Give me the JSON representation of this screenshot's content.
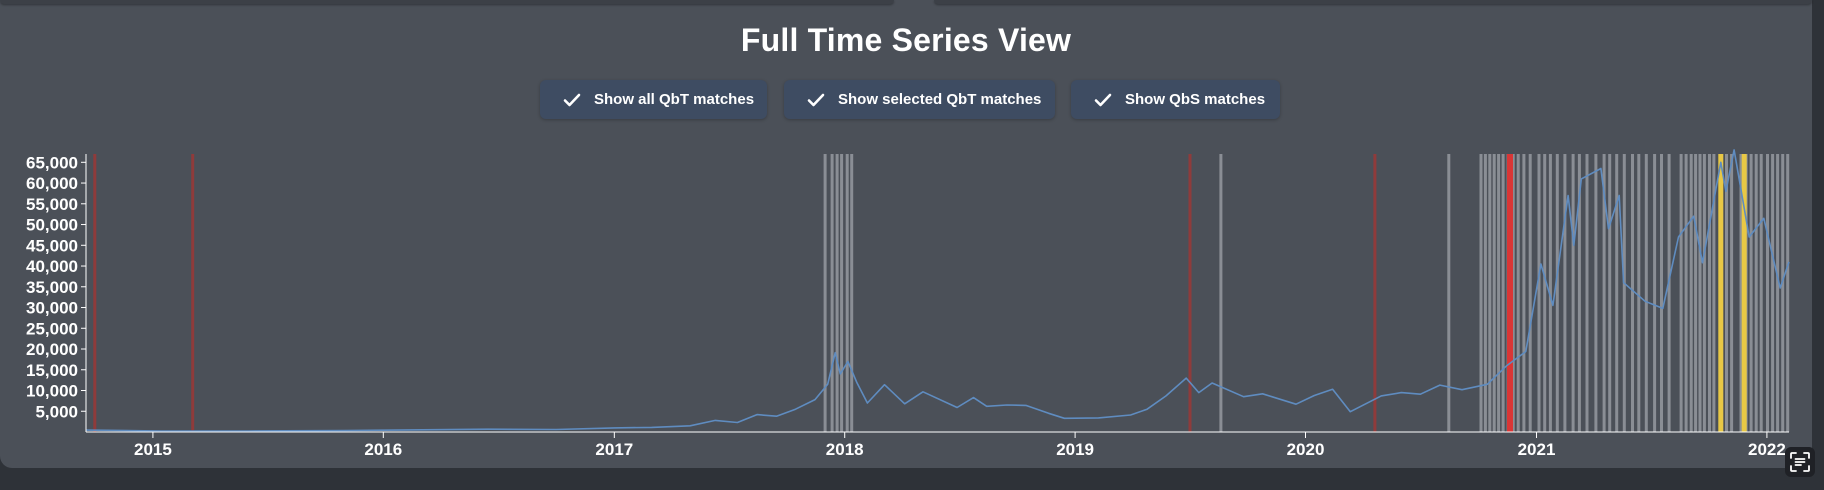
{
  "page": {
    "title": "Full Time Series View",
    "toggles": [
      {
        "label": "Show all QbT matches",
        "checked": true
      },
      {
        "label": "Show selected QbT matches",
        "checked": true
      },
      {
        "label": "Show QbS matches",
        "checked": true
      }
    ]
  },
  "colors": {
    "panel": "#4b5058",
    "line": "#5f8cc0",
    "qbt_match": "#8a8e95",
    "qbs_match": "#8f3b3b",
    "selected_red": "#d93636",
    "selected_yellow": "#e8c845"
  },
  "chart_data": {
    "type": "line",
    "title": "",
    "xlabel": "",
    "ylabel": "",
    "x_ticks": [
      "2015",
      "2016",
      "2017",
      "2018",
      "2019",
      "2020",
      "2021",
      "2022"
    ],
    "y_ticks": [
      5000,
      10000,
      15000,
      20000,
      25000,
      30000,
      35000,
      40000,
      45000,
      50000,
      55000,
      60000,
      65000
    ],
    "y_tick_labels": [
      "5,000",
      "10,000",
      "15,000",
      "20,000",
      "25,000",
      "30,000",
      "35,000",
      "40,000",
      "45,000",
      "50,000",
      "55,000",
      "60,000",
      "65,000"
    ],
    "xlim": [
      "2014-09-17",
      "2022-02-05"
    ],
    "ylim": [
      0,
      67000
    ],
    "grid": false,
    "series": [
      {
        "points": [
          [
            "2014-09-17",
            460
          ],
          [
            "2015-01-15",
            250
          ],
          [
            "2015-06-01",
            240
          ],
          [
            "2015-11-01",
            330
          ],
          [
            "2016-01-01",
            430
          ],
          [
            "2016-06-15",
            680
          ],
          [
            "2016-10-01",
            610
          ],
          [
            "2017-01-01",
            990
          ],
          [
            "2017-03-01",
            1100
          ],
          [
            "2017-05-01",
            1500
          ],
          [
            "2017-06-10",
            2800
          ],
          [
            "2017-07-15",
            2300
          ],
          [
            "2017-08-15",
            4200
          ],
          [
            "2017-09-15",
            3800
          ],
          [
            "2017-10-15",
            5500
          ],
          [
            "2017-11-15",
            7800
          ],
          [
            "2017-12-05",
            11500
          ],
          [
            "2017-12-17",
            19100
          ],
          [
            "2017-12-25",
            14000
          ],
          [
            "2018-01-06",
            17000
          ],
          [
            "2018-01-20",
            12000
          ],
          [
            "2018-02-06",
            7000
          ],
          [
            "2018-03-05",
            11400
          ],
          [
            "2018-04-06",
            6800
          ],
          [
            "2018-05-05",
            9700
          ],
          [
            "2018-06-28",
            5900
          ],
          [
            "2018-07-24",
            8300
          ],
          [
            "2018-08-14",
            6200
          ],
          [
            "2018-09-15",
            6500
          ],
          [
            "2018-10-15",
            6400
          ],
          [
            "2018-11-20",
            4500
          ],
          [
            "2018-12-15",
            3300
          ],
          [
            "2019-02-07",
            3400
          ],
          [
            "2019-03-30",
            4100
          ],
          [
            "2019-04-25",
            5500
          ],
          [
            "2019-05-25",
            8700
          ],
          [
            "2019-06-26",
            13000
          ],
          [
            "2019-07-16",
            9500
          ],
          [
            "2019-08-06",
            11800
          ],
          [
            "2019-09-25",
            8500
          ],
          [
            "2019-10-25",
            9200
          ],
          [
            "2019-12-17",
            6700
          ],
          [
            "2020-01-15",
            8800
          ],
          [
            "2020-02-13",
            10300
          ],
          [
            "2020-03-12",
            4900
          ],
          [
            "2020-04-30",
            8700
          ],
          [
            "2020-06-01",
            9500
          ],
          [
            "2020-07-01",
            9100
          ],
          [
            "2020-08-01",
            11300
          ],
          [
            "2020-09-05",
            10200
          ],
          [
            "2020-10-15",
            11500
          ],
          [
            "2020-11-15",
            16000
          ],
          [
            "2020-12-15",
            19400
          ],
          [
            "2021-01-08",
            40500
          ],
          [
            "2021-01-27",
            30500
          ],
          [
            "2021-02-20",
            57000
          ],
          [
            "2021-03-01",
            45000
          ],
          [
            "2021-03-13",
            61000
          ],
          [
            "2021-04-13",
            63500
          ],
          [
            "2021-04-25",
            49000
          ],
          [
            "2021-05-12",
            57000
          ],
          [
            "2021-05-19",
            36000
          ],
          [
            "2021-06-22",
            31500
          ],
          [
            "2021-07-20",
            29800
          ],
          [
            "2021-08-14",
            47000
          ],
          [
            "2021-09-07",
            52000
          ],
          [
            "2021-09-21",
            40800
          ],
          [
            "2021-10-20",
            65000
          ],
          [
            "2021-10-28",
            58000
          ],
          [
            "2021-11-10",
            68000
          ],
          [
            "2021-12-04",
            47000
          ],
          [
            "2021-12-27",
            51500
          ],
          [
            "2022-01-22",
            34700
          ],
          [
            "2022-02-05",
            41000
          ]
        ]
      }
    ],
    "annotations": {
      "qbt_matches": [
        "2017-12-01",
        "2017-12-12",
        "2017-12-20",
        "2017-12-27",
        "2018-01-05",
        "2018-01-12",
        "2019-08-20",
        "2020-08-15",
        "2020-10-05",
        "2020-10-12",
        "2020-10-19",
        "2020-10-26",
        "2020-11-02",
        "2020-11-09",
        "2020-11-17",
        "2020-11-25",
        "2020-12-03",
        "2020-12-12",
        "2020-12-22",
        "2021-01-05",
        "2021-01-14",
        "2021-01-23",
        "2021-02-03",
        "2021-02-15",
        "2021-02-28",
        "2021-03-10",
        "2021-03-22",
        "2021-04-05",
        "2021-04-18",
        "2021-04-27",
        "2021-05-08",
        "2021-05-20",
        "2021-06-02",
        "2021-06-12",
        "2021-06-24",
        "2021-07-07",
        "2021-07-18",
        "2021-07-30",
        "2021-08-18",
        "2021-08-26",
        "2021-09-03",
        "2021-09-10",
        "2021-09-17",
        "2021-09-24",
        "2021-10-02",
        "2021-10-09",
        "2021-10-29",
        "2021-11-06",
        "2021-11-21",
        "2021-11-29",
        "2021-12-07",
        "2021-12-15",
        "2021-12-23",
        "2022-01-02",
        "2022-01-10",
        "2022-01-18",
        "2022-01-26",
        "2022-02-03"
      ],
      "qbs_matches": [
        "2014-10-01",
        "2015-03-05",
        "2019-07-02",
        "2020-04-20"
      ],
      "selected_red": [
        "2020-11-20"
      ],
      "selected_yellow": [
        "2021-10-20",
        "2021-11-26"
      ]
    }
  }
}
